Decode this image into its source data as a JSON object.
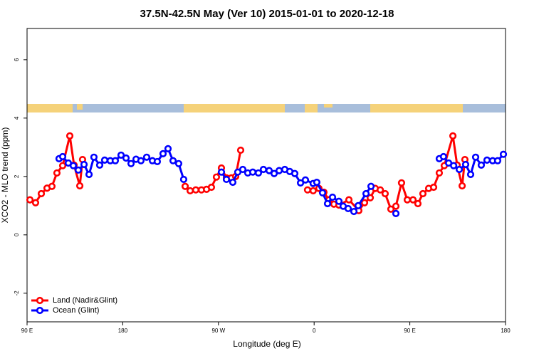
{
  "chart_data": {
    "type": "line",
    "title": "37.5N-42.5N May (Ver 10)   2015-01-01 to 2020-12-18",
    "xlabel": "Longitude (deg E)",
    "ylabel": "XCO2 - MLO trend (ppm)",
    "xlim": [
      90,
      540
    ],
    "ylim": [
      -2.98,
      7.07
    ],
    "xticks": [
      {
        "value": 90,
        "label": "90 E"
      },
      180,
      {
        "value": 270,
        "label": "90 W"
      },
      {
        "value": 360,
        "label": "0"
      },
      {
        "value": 450,
        "label": "90 E"
      },
      {
        "value": 540,
        "label": "180"
      }
    ],
    "yticks": [
      -2,
      0,
      2,
      4,
      6
    ],
    "legend": "bottom-left",
    "series": [
      {
        "name": "Land (Nadir&Glint)",
        "color": "#ff0000",
        "x": [
          92.7,
          98,
          103.4,
          108.8,
          113.4,
          118.1,
          123.5,
          130.2,
          134.2,
          139.6,
          142.2,
          null,
          238.7,
          243.4,
          248.7,
          254,
          258.8,
          263.4,
          268.1,
          272.8,
          277.5,
          282.2,
          286.2,
          290.9,
          null,
          353.8,
          359.1,
          364.5,
          369.2,
          373.9,
          378.6,
          383.3,
          392.7,
          402,
          407.4,
          412.8,
          417.5,
          422.2,
          426.8,
          432.2,
          436.9,
          442.2,
          447.6,
          453,
          457.6,
          462.3,
          467.7,
          472.4,
          477.7,
          482.4,
          490.5,
          494.5,
          499.2,
          501.8
        ],
        "values": [
          1.2,
          1.1,
          1.41,
          1.6,
          1.66,
          2.12,
          2.37,
          3.39,
          2.39,
          1.68,
          2.58,
          null,
          1.66,
          1.51,
          1.54,
          1.54,
          1.56,
          1.63,
          1.98,
          2.29,
          1.95,
          1.95,
          2.0,
          2.9,
          null,
          1.54,
          1.51,
          1.59,
          1.46,
          1.2,
          1.05,
          1.02,
          1.2,
          0.83,
          1.1,
          1.27,
          1.59,
          1.54,
          1.41,
          0.88,
          0.98,
          1.78,
          1.2,
          1.2,
          1.07,
          1.41,
          1.59,
          1.63,
          2.12,
          2.37,
          3.39,
          2.39,
          1.68,
          2.58
        ]
      },
      {
        "name": "Ocean (Glint)",
        "color": "#0000ff",
        "x": [
          120.1,
          123.5,
          128.8,
          133.5,
          138.2,
          143.6,
          148.3,
          152.9,
          158.3,
          163,
          168.3,
          173,
          178.4,
          183.1,
          187.8,
          192.5,
          197.1,
          202.5,
          207.9,
          212.5,
          217.9,
          222.6,
          227.3,
          232.6,
          237.3,
          null,
          272.8,
          277.5,
          283.5,
          288.2,
          292.9,
          297.6,
          302.3,
          307.6,
          312.3,
          317.7,
          322.4,
          327.1,
          332.4,
          337.1,
          341.8,
          347.2,
          351.8,
          359.1,
          362.5,
          367.9,
          372.6,
          377.3,
          383.3,
          387.3,
          392,
          397.4,
          401.4,
          408.8,
          413.5,
          null,
          436.9,
          null,
          477.7,
          481.7,
          486.5,
          491.2,
          496.5,
          502.5,
          507.2,
          511.9,
          517.2,
          522.6,
          527.9,
          532.6,
          538
        ],
        "values": [
          2.61,
          2.68,
          2.46,
          2.37,
          2.22,
          2.41,
          2.07,
          2.66,
          2.39,
          2.56,
          2.54,
          2.54,
          2.73,
          2.63,
          2.44,
          2.59,
          2.54,
          2.66,
          2.54,
          2.51,
          2.78,
          2.95,
          2.54,
          2.44,
          1.9,
          null,
          2.15,
          1.9,
          1.8,
          2.15,
          2.24,
          2.12,
          2.15,
          2.12,
          2.24,
          2.2,
          2.1,
          2.2,
          2.24,
          2.17,
          2.1,
          1.78,
          1.88,
          1.76,
          1.8,
          1.44,
          1.07,
          1.29,
          1.15,
          0.98,
          0.9,
          0.8,
          1.0,
          1.41,
          1.66,
          null,
          0.73,
          null,
          2.61,
          2.68,
          2.46,
          2.37,
          2.24,
          2.41,
          2.07,
          2.66,
          2.39,
          2.56,
          2.54,
          2.54,
          2.76
        ]
      }
    ]
  }
}
